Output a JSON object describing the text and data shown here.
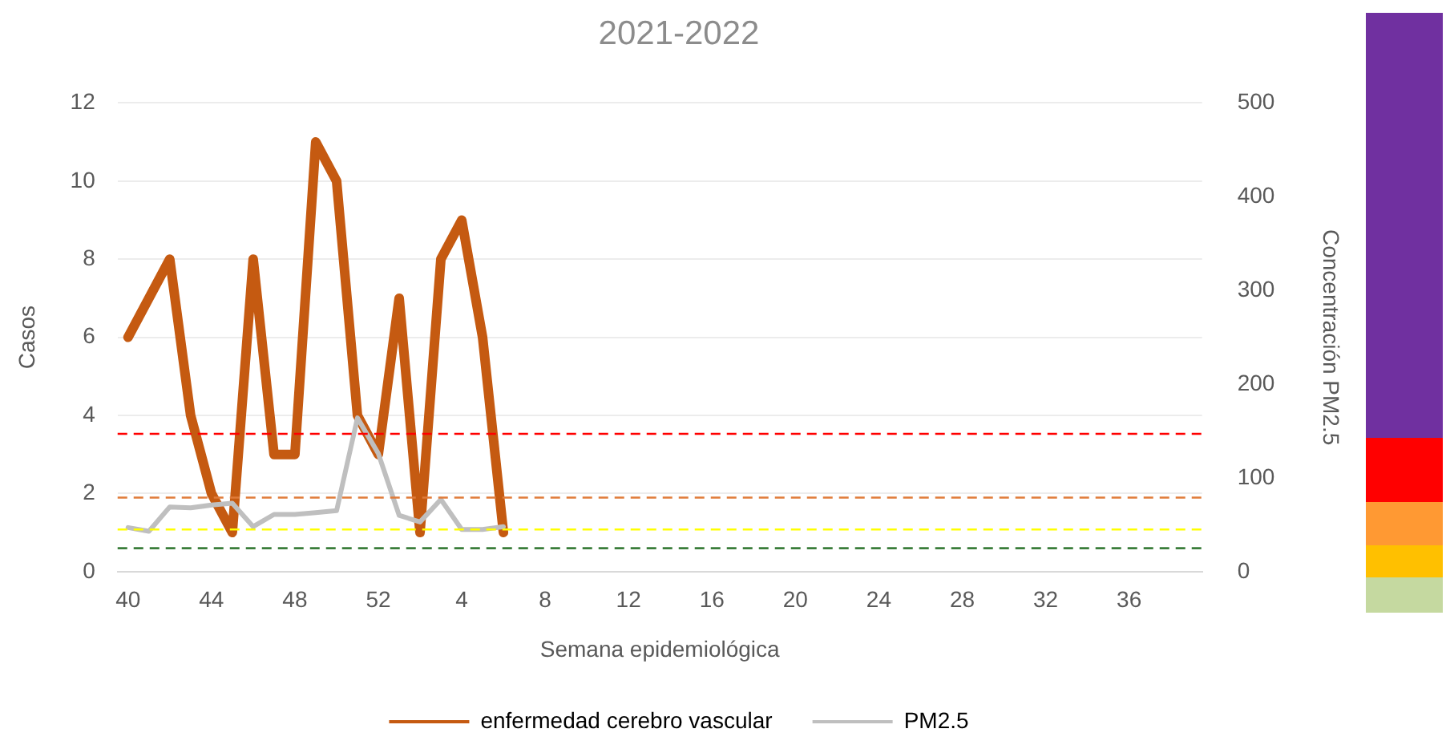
{
  "chart_data": {
    "type": "line",
    "title": "2021-2022",
    "xlabel": "Semana epidemiológica",
    "ylabel": "Casos",
    "y2label": "Concentración PM2.5",
    "categories": [
      "40",
      null,
      null,
      null,
      "44",
      null,
      null,
      null,
      "48",
      null,
      null,
      null,
      "52",
      null,
      null,
      null,
      "4",
      null,
      null,
      null,
      "8",
      null,
      null,
      null,
      "12",
      null,
      null,
      null,
      "16",
      null,
      null,
      null,
      "20",
      null,
      null,
      null,
      "24",
      null,
      null,
      null,
      "28",
      null,
      null,
      null,
      "32",
      null,
      null,
      null,
      "36",
      null,
      null,
      null
    ],
    "series": [
      {
        "name": "enfermedad cerebro vascular",
        "color": "#c55a11",
        "values": [
          6,
          7,
          8,
          4,
          2,
          1,
          8,
          3,
          3,
          11,
          10,
          4,
          3,
          7,
          1,
          8,
          9,
          6,
          1,
          null,
          null,
          null,
          null,
          null,
          null,
          null,
          null,
          null,
          null,
          null,
          null,
          null,
          null,
          null,
          null,
          null,
          null,
          null,
          null,
          null,
          null,
          null,
          null,
          null,
          null,
          null,
          null,
          null,
          null,
          null,
          null,
          null
        ]
      },
      {
        "name": "PM2.5",
        "color": "#bfbfbf",
        "axis": "y2",
        "values": [
          47,
          43,
          69,
          68,
          71,
          73,
          48,
          61,
          61,
          63,
          65,
          164,
          126,
          60,
          53,
          77,
          45,
          45,
          48,
          null,
          null,
          null,
          null,
          null,
          null,
          null,
          null,
          null,
          null,
          null,
          null,
          null,
          null,
          null,
          null,
          null,
          null,
          null,
          null,
          null,
          null,
          null,
          null,
          null,
          null,
          null,
          null,
          null,
          null,
          null,
          null,
          null
        ]
      }
    ],
    "ylim": [
      0,
      12
    ],
    "yticks": [
      0,
      2,
      4,
      6,
      8,
      10,
      12
    ],
    "y2lim": [
      0,
      500
    ],
    "y2ticks": [
      0,
      100,
      200,
      300,
      400,
      500
    ],
    "ref_lines": [
      {
        "axis": "y2",
        "value": 147,
        "color": "#ff0000",
        "line_style": "dashed"
      },
      {
        "axis": "y2",
        "value": 79,
        "color": "#e07b39",
        "line_style": "dashed"
      },
      {
        "axis": "y2",
        "value": 45,
        "color": "#ffff00",
        "line_style": "dashed"
      },
      {
        "axis": "y2",
        "value": 25,
        "color": "#3a7d3a",
        "line_style": "dashed"
      }
    ],
    "grid": "y",
    "legend": "bottom",
    "marker": "none",
    "line_style": "solid"
  }
}
